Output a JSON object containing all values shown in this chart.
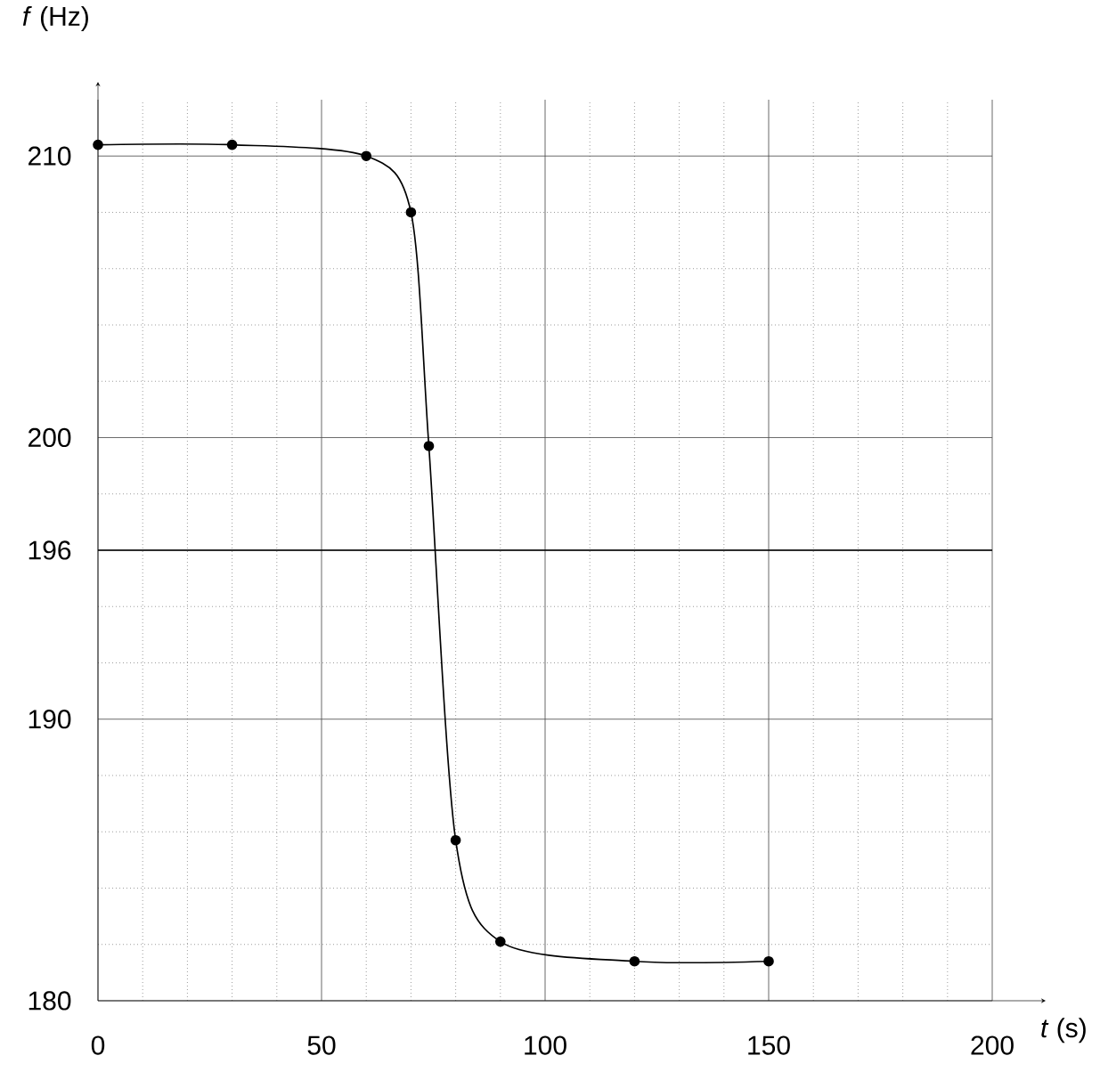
{
  "chart_data": {
    "type": "line",
    "xlabel": "*t* (s)",
    "ylabel": "*f* (Hz)",
    "x": [
      0,
      30,
      60,
      70,
      74,
      80,
      90,
      120,
      150
    ],
    "series": [
      {
        "color": "#000000",
        "values": [
          210.4,
          210.4,
          210,
          208,
          199.7,
          185.7,
          182.1,
          181.4,
          181.4
        ]
      }
    ],
    "xlim": [
      0,
      200
    ],
    "ylim": [
      180,
      212
    ],
    "xticks": [
      0,
      50,
      100,
      150,
      200
    ],
    "yticks": [
      180,
      190,
      196,
      200,
      210
    ],
    "ref_lines": [
      {
        "axis": "y",
        "value": 196,
        "color": "#000000"
      }
    ],
    "grid": true,
    "marker": "circle",
    "line_style": "solid"
  }
}
